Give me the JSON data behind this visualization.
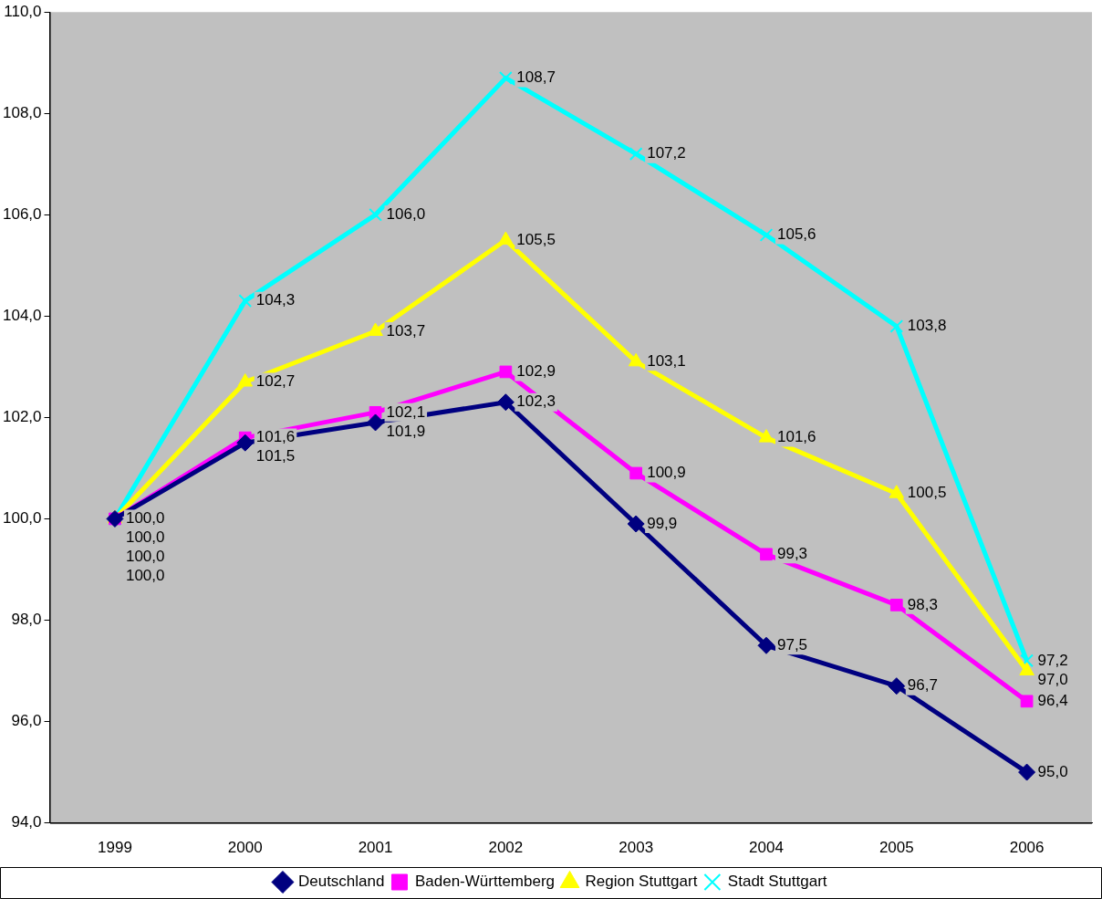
{
  "chart_data": {
    "type": "line",
    "categories": [
      "1999",
      "2000",
      "2001",
      "2002",
      "2003",
      "2004",
      "2005",
      "2006"
    ],
    "ylim": [
      94,
      110
    ],
    "yticks": [
      {
        "value": 94,
        "label": "94,0"
      },
      {
        "value": 96,
        "label": "96,0"
      },
      {
        "value": 98,
        "label": "98,0"
      },
      {
        "value": 100,
        "label": "100,0"
      },
      {
        "value": 102,
        "label": "102,0"
      },
      {
        "value": 104,
        "label": "104,0"
      },
      {
        "value": 106,
        "label": "106,0"
      },
      {
        "value": 108,
        "label": "108,0"
      },
      {
        "value": 110,
        "label": "110,0"
      }
    ],
    "grid": false,
    "legend": "bottom",
    "line_style": "solid",
    "series": [
      {
        "name": "Deutschland",
        "color": "#000080",
        "marker": "diamond",
        "values": [
          100.0,
          101.5,
          101.9,
          102.3,
          99.9,
          97.5,
          96.7,
          95.0
        ],
        "value_labels": [
          "100,0",
          "101,5",
          "101,9",
          "102,3",
          "99,9",
          "97,5",
          "96,7",
          "95,0"
        ]
      },
      {
        "name": "Baden-Württemberg",
        "color": "#ff00ff",
        "marker": "square",
        "values": [
          100.0,
          101.6,
          102.1,
          102.9,
          100.9,
          99.3,
          98.3,
          96.4
        ],
        "value_labels": [
          "100,0",
          "101,6",
          "102,1",
          "102,9",
          "100,9",
          "99,3",
          "98,3",
          "96,4"
        ]
      },
      {
        "name": "Region Stuttgart",
        "color": "#ffff00",
        "marker": "triangle",
        "values": [
          100.0,
          102.7,
          103.7,
          105.5,
          103.1,
          101.6,
          100.5,
          97.0
        ],
        "value_labels": [
          "100,0",
          "102,7",
          "103,7",
          "105,5",
          "103,1",
          "101,6",
          "100,5",
          "97,0"
        ]
      },
      {
        "name": "Stadt Stuttgart",
        "color": "#00ffff",
        "marker": "cross",
        "values": [
          100.0,
          104.3,
          106.0,
          108.7,
          107.2,
          105.6,
          103.8,
          97.2
        ],
        "value_labels": [
          "100,0",
          "104,3",
          "106,0",
          "108,7",
          "107,2",
          "105,6",
          "103,8",
          "97,2"
        ]
      }
    ]
  }
}
